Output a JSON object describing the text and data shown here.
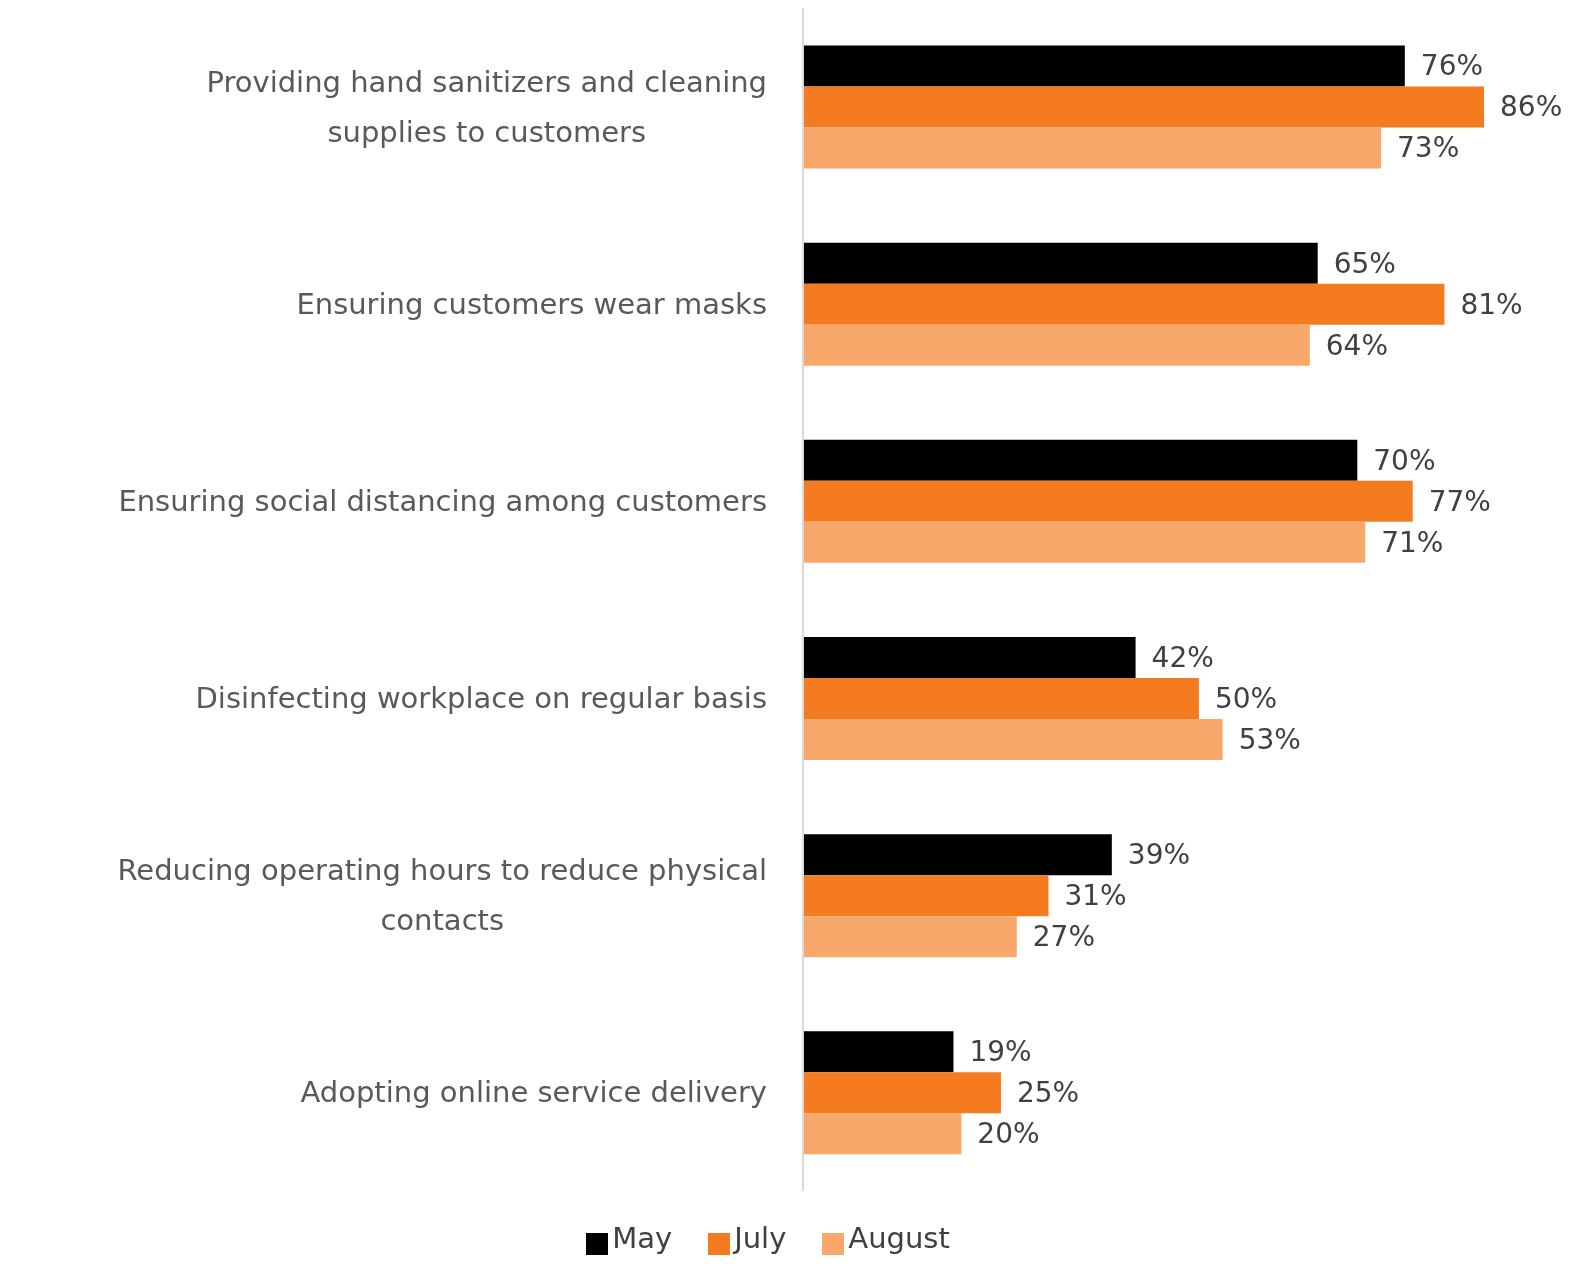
{
  "chart_data": {
    "type": "bar",
    "orientation": "horizontal",
    "categories": [
      "Providing hand sanitizers and cleaning supplies to customers",
      "Ensuring customers wear masks",
      "Ensuring social distancing among customers",
      "Disinfecting workplace on regular basis",
      "Reducing operating hours to reduce physical contacts",
      "Adopting online service delivery"
    ],
    "series": [
      {
        "name": "May",
        "color": "#000000",
        "values": [
          76,
          65,
          70,
          42,
          39,
          19
        ],
        "value_labels": [
          "76%",
          "65%",
          "70%",
          "42%",
          "39%",
          "19%"
        ]
      },
      {
        "name": "July",
        "color": "#f47b20",
        "values": [
          86,
          81,
          77,
          50,
          31,
          25
        ],
        "value_labels": [
          "86%",
          "81%",
          "77%",
          "50%",
          "31%",
          "25%"
        ]
      },
      {
        "name": "August",
        "color": "#f7a86a",
        "values": [
          73,
          64,
          71,
          53,
          27,
          20
        ],
        "value_labels": [
          "73%",
          "64%",
          "71%",
          "53%",
          "27%",
          "20%"
        ]
      }
    ],
    "legend": "bottom"
  }
}
